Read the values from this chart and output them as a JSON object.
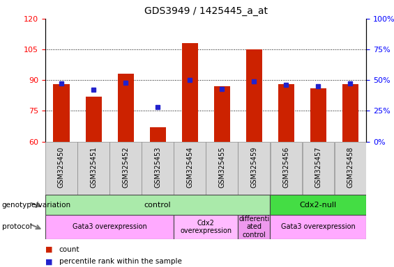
{
  "title": "GDS3949 / 1425445_a_at",
  "samples": [
    "GSM325450",
    "GSM325451",
    "GSM325452",
    "GSM325453",
    "GSM325454",
    "GSM325455",
    "GSM325459",
    "GSM325456",
    "GSM325457",
    "GSM325458"
  ],
  "counts": [
    88,
    82,
    93,
    67,
    108,
    87,
    105,
    88,
    86,
    88
  ],
  "percentile_ranks": [
    47,
    42,
    48,
    28,
    50,
    43,
    49,
    46,
    45,
    47
  ],
  "ylim_left": [
    60,
    120
  ],
  "ylim_right": [
    0,
    100
  ],
  "yticks_left": [
    60,
    75,
    90,
    105,
    120
  ],
  "yticks_right": [
    0,
    25,
    50,
    75,
    100
  ],
  "bar_color": "#cc2200",
  "dot_color": "#2222cc",
  "bar_width": 0.5,
  "genotype_groups": [
    {
      "label": "control",
      "start": 0,
      "end": 7,
      "color": "#aaeaaa"
    },
    {
      "label": "Cdx2-null",
      "start": 7,
      "end": 10,
      "color": "#44dd44"
    }
  ],
  "protocol_groups": [
    {
      "label": "Gata3 overexpression",
      "start": 0,
      "end": 4,
      "color": "#ffaaff"
    },
    {
      "label": "Cdx2\noverexpression",
      "start": 4,
      "end": 6,
      "color": "#ffbbff"
    },
    {
      "label": "differenti\nated\ncontrol",
      "start": 6,
      "end": 7,
      "color": "#ee99ee"
    },
    {
      "label": "Gata3 overexpression",
      "start": 7,
      "end": 10,
      "color": "#ffaaff"
    }
  ],
  "sample_box_color": "#d8d8d8",
  "legend_count_color": "#cc2200",
  "legend_dot_color": "#2222cc",
  "title_fontsize": 10,
  "tick_fontsize": 8,
  "label_fontsize": 8,
  "sample_fontsize": 7,
  "anno_fontsize": 8
}
